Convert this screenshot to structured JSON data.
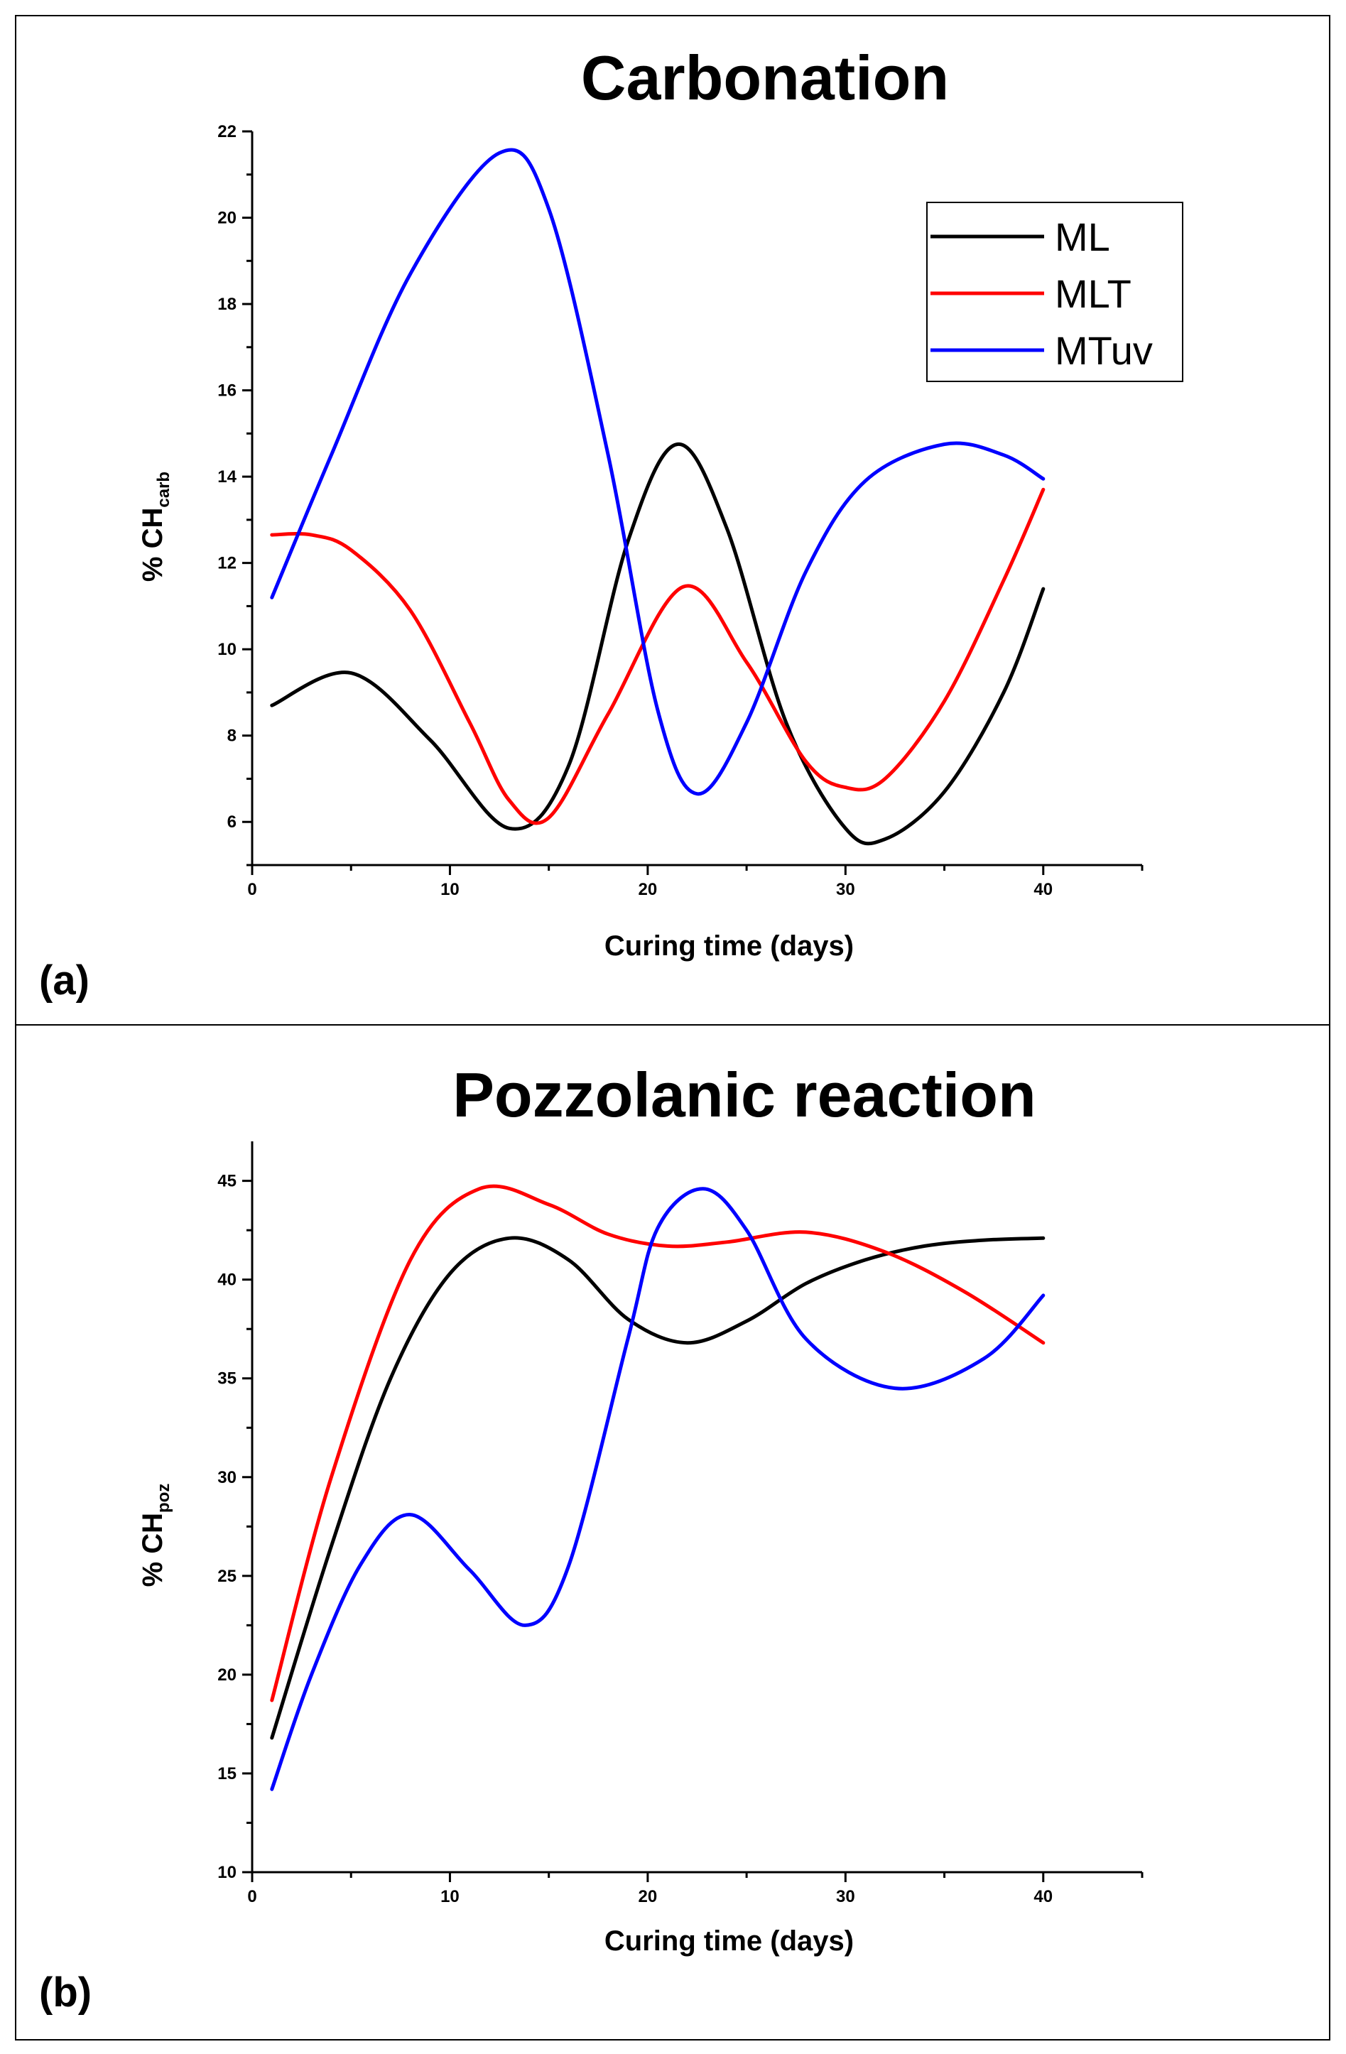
{
  "chart_data": [
    {
      "type": "line",
      "panel_label": "(a)",
      "title": "Carbonation",
      "xlabel": "Curing time (days)",
      "ylabel_main": "% CH",
      "ylabel_sub": "carb",
      "xlim": [
        0,
        45
      ],
      "ylim": [
        5,
        22
      ],
      "xticks": [
        0,
        10,
        20,
        30,
        40
      ],
      "yticks": [
        6,
        8,
        10,
        12,
        14,
        16,
        18,
        20,
        22
      ],
      "legend_position": "top-right",
      "series": [
        {
          "name": "ML",
          "color": "#000000",
          "x": [
            1,
            5,
            9,
            13,
            16,
            19,
            21.5,
            24,
            27,
            30,
            32,
            35,
            38,
            40
          ],
          "y": [
            8.7,
            9.45,
            7.9,
            5.85,
            7.3,
            12.5,
            14.75,
            12.8,
            8.3,
            5.85,
            5.6,
            6.7,
            9.0,
            11.4
          ]
        },
        {
          "name": "MLT",
          "color": "#ff0000",
          "x": [
            1,
            3,
            5,
            8,
            11,
            13,
            15,
            18,
            21.8,
            25,
            28,
            30,
            32,
            35,
            38,
            40
          ],
          "y": [
            12.65,
            12.65,
            12.3,
            10.9,
            8.3,
            6.5,
            6.1,
            8.5,
            11.45,
            9.7,
            7.4,
            6.8,
            7.0,
            8.8,
            11.6,
            13.7
          ]
        },
        {
          "name": "MTuv",
          "color": "#0000ff",
          "x": [
            1,
            4,
            8,
            12.5,
            15,
            18,
            20.5,
            22.5,
            25,
            28,
            31,
            35,
            38,
            40
          ],
          "y": [
            11.2,
            14.5,
            18.7,
            21.5,
            20.2,
            14.5,
            8.6,
            6.65,
            8.3,
            11.8,
            13.9,
            14.75,
            14.5,
            13.95
          ]
        }
      ]
    },
    {
      "type": "line",
      "panel_label": "(b)",
      "title": "Pozzolanic reaction",
      "xlabel": "Curing time (days)",
      "ylabel_main": "% CH",
      "ylabel_sub": "poz",
      "xlim": [
        0,
        45
      ],
      "ylim": [
        10,
        47
      ],
      "xticks": [
        0,
        10,
        20,
        30,
        40
      ],
      "yticks": [
        10,
        15,
        20,
        25,
        30,
        35,
        40,
        45
      ],
      "series": [
        {
          "name": "ML",
          "color": "#000000",
          "x": [
            1,
            4,
            7,
            10,
            13,
            16,
            19,
            22,
            25,
            28,
            31,
            34,
            37,
            40
          ],
          "y": [
            16.8,
            26.5,
            35.0,
            40.3,
            42.1,
            41.0,
            38.0,
            36.8,
            37.9,
            39.8,
            41.0,
            41.7,
            42.0,
            42.1
          ]
        },
        {
          "name": "MLT",
          "color": "#ff0000",
          "x": [
            1,
            4,
            8,
            11.5,
            15,
            18,
            21,
            24,
            28,
            32,
            36,
            40
          ],
          "y": [
            18.7,
            30.0,
            41.0,
            44.6,
            43.8,
            42.3,
            41.7,
            41.9,
            42.4,
            41.4,
            39.4,
            36.8
          ]
        },
        {
          "name": "MTuv",
          "color": "#0000ff",
          "x": [
            1,
            3,
            5.5,
            8,
            11,
            13.8,
            16,
            19,
            20.5,
            22.8,
            25,
            28,
            32.5,
            37,
            40
          ],
          "y": [
            14.2,
            20.0,
            25.6,
            28.1,
            25.3,
            22.5,
            25.5,
            37.0,
            42.6,
            44.6,
            42.5,
            37.0,
            34.5,
            36.0,
            39.2
          ]
        }
      ]
    }
  ]
}
